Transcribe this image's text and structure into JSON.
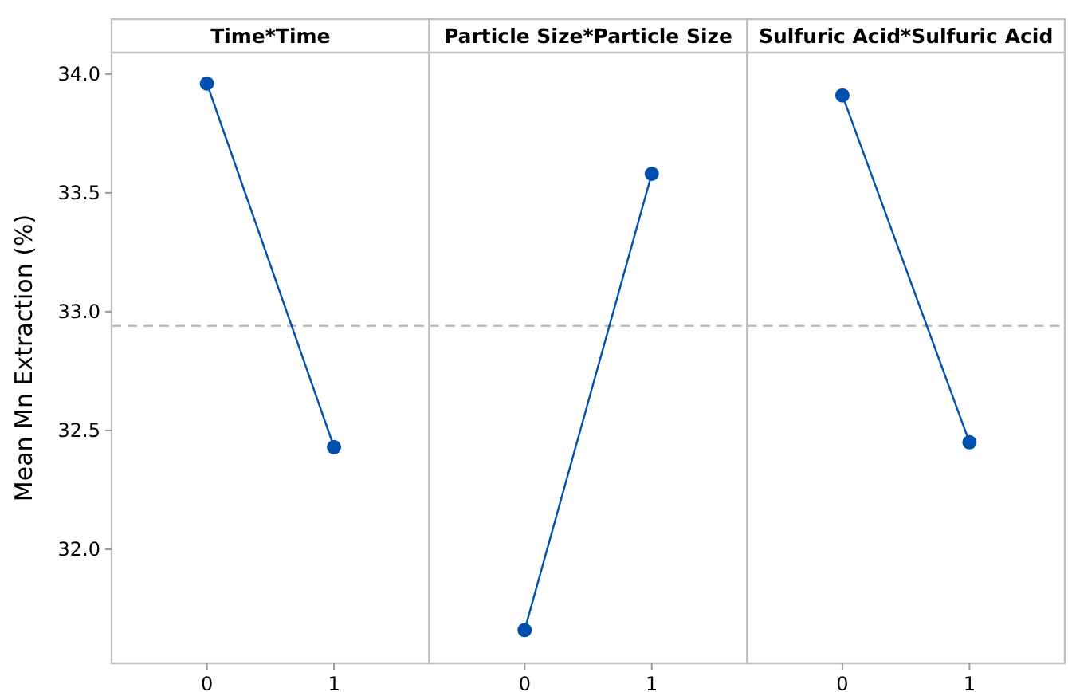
{
  "chart_data": [
    {
      "type": "line",
      "title": "Time*Time",
      "ylabel": "Mean Mn Extraction (%)",
      "categories": [
        "0",
        "1"
      ],
      "series": [
        {
          "color": "#0050b0",
          "values": [
            33.96,
            32.43
          ]
        }
      ],
      "ylim": [
        31.52,
        34.09
      ],
      "yticks": [
        {
          "value": 32,
          "label": "32.0"
        },
        {
          "value": 32.5,
          "label": "32.5"
        },
        {
          "value": 33,
          "label": "33.0"
        },
        {
          "value": 33.5,
          "label": "33.5"
        },
        {
          "value": 34,
          "label": "34.0"
        }
      ],
      "ref_lines": [
        {
          "axis": "y",
          "value": 32.94,
          "color": "#bbbbbb",
          "line_style": "dashed"
        }
      ],
      "marker": "circle",
      "line_style": "solid",
      "grid": false
    },
    {
      "type": "line",
      "title": "Particle Size*Particle Size",
      "categories": [
        "0",
        "1"
      ],
      "series": [
        {
          "color": "#0050b0",
          "values": [
            31.66,
            33.58
          ]
        }
      ],
      "ylim": [
        31.52,
        34.09
      ],
      "tick_labels": "x",
      "ref_lines": [
        {
          "axis": "y",
          "value": 32.94,
          "color": "#bbbbbb",
          "line_style": "dashed"
        }
      ],
      "marker": "circle",
      "line_style": "solid",
      "grid": false
    },
    {
      "type": "line",
      "title": "Sulfuric Acid*Sulfuric Acid",
      "categories": [
        "0",
        "1"
      ],
      "series": [
        {
          "color": "#0050b0",
          "values": [
            33.91,
            32.45
          ]
        }
      ],
      "ylim": [
        31.52,
        34.09
      ],
      "tick_labels": "x",
      "ref_lines": [
        {
          "axis": "y",
          "value": 32.94,
          "color": "#bbbbbb",
          "line_style": "dashed"
        }
      ],
      "marker": "circle",
      "line_style": "solid",
      "grid": false
    }
  ]
}
